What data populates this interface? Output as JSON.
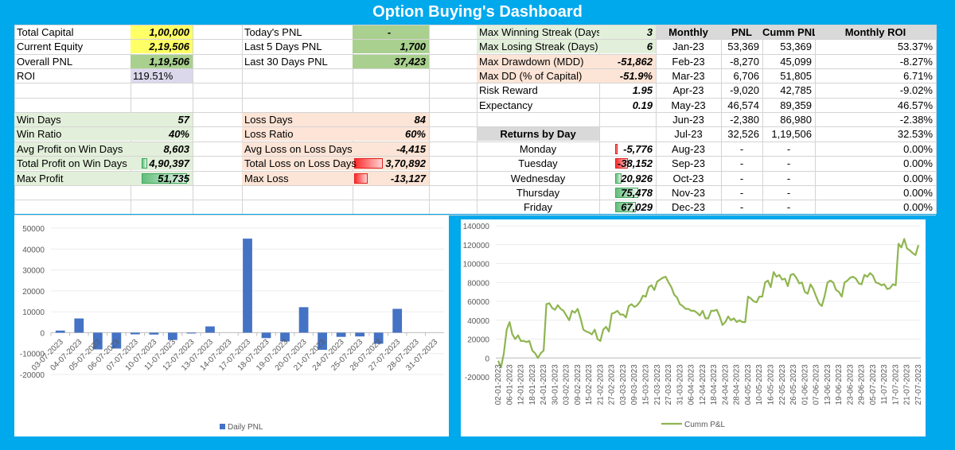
{
  "title": "Option Buying's Dashboard",
  "col1": [
    {
      "label": "Total Capital",
      "value": "1,00,000"
    },
    {
      "label": "Current Equity",
      "value": "2,19,506"
    },
    {
      "label": "Overall PNL",
      "value": "1,19,506"
    },
    {
      "label": "ROI",
      "value": "119.51%"
    }
  ],
  "col2": [
    {
      "label": "Today's PNL",
      "value": "-"
    },
    {
      "label": "Last 5 Days PNL",
      "value": "1,700"
    },
    {
      "label": "Last 30 Days PNL",
      "value": "37,423"
    }
  ],
  "win": [
    {
      "label": "Win Days",
      "value": "57"
    },
    {
      "label": "Win Ratio",
      "value": "40%"
    },
    {
      "label": "Avg Profit on Win Days",
      "value": "8,603"
    },
    {
      "label": "Total Profit on Win Days",
      "value": "4,90,397",
      "fill": 0.12
    },
    {
      "label": "Max Profit",
      "value": "51,735",
      "fill": 0.92
    }
  ],
  "loss": [
    {
      "label": "Loss Days",
      "value": "84"
    },
    {
      "label": "Loss Ratio",
      "value": "60%"
    },
    {
      "label": "Avg Loss on Loss Days",
      "value": "-4,415"
    },
    {
      "label": "Total Loss on Loss Days",
      "value": "3,70,892",
      "fill": 0.6
    },
    {
      "label": "Max Loss",
      "value": "-13,127",
      "fill": 0.28
    }
  ],
  "stats": [
    {
      "label": "Max Winning Streak (Days)",
      "value": "3"
    },
    {
      "label": "Max Losing Streak (Days)",
      "value": "6"
    },
    {
      "label": "Max Drawdown (MDD)",
      "value": "-51,862"
    },
    {
      "label": "Max DD (% of Capital)",
      "value": "-51.9%"
    },
    {
      "label": "Risk Reward",
      "value": "1.95"
    },
    {
      "label": "Expectancy",
      "value": "0.19"
    }
  ],
  "returns_by_day": {
    "header": "Returns by Day",
    "rows": [
      {
        "day": "Monday",
        "value": "-5,776",
        "kind": "neg",
        "fill": 0.05
      },
      {
        "day": "Tuesday",
        "value": "-38,152",
        "kind": "neg",
        "fill": 0.32
      },
      {
        "day": "Wednesday",
        "value": "20,926",
        "kind": "pos",
        "fill": 0.16
      },
      {
        "day": "Thursday",
        "value": "75,478",
        "kind": "pos",
        "fill": 0.58
      },
      {
        "day": "Friday",
        "value": "67,029",
        "kind": "pos",
        "fill": 0.52
      }
    ]
  },
  "monthly": {
    "headers": [
      "Monthly",
      "PNL",
      "Cumm PNL",
      "Monthly ROI"
    ],
    "rows": [
      [
        "Jan-23",
        "53,369",
        "53,369",
        "53.37%"
      ],
      [
        "Feb-23",
        "-8,270",
        "45,099",
        "-8.27%"
      ],
      [
        "Mar-23",
        "6,706",
        "51,805",
        "6.71%"
      ],
      [
        "Apr-23",
        "-9,020",
        "42,785",
        "-9.02%"
      ],
      [
        "May-23",
        "46,574",
        "89,359",
        "46.57%"
      ],
      [
        "Jun-23",
        "-2,380",
        "86,980",
        "-2.38%"
      ],
      [
        "Jul-23",
        "32,526",
        "1,19,506",
        "32.53%"
      ],
      [
        "Aug-23",
        "-",
        "-",
        "0.00%"
      ],
      [
        "Sep-23",
        "-",
        "-",
        "0.00%"
      ],
      [
        "Oct-23",
        "-",
        "-",
        "0.00%"
      ],
      [
        "Nov-23",
        "-",
        "-",
        "0.00%"
      ],
      [
        "Dec-23",
        "-",
        "-",
        "0.00%"
      ]
    ]
  },
  "colors": {
    "accent": "#00a8ec",
    "bar": "#4472c4",
    "line": "#8fb550"
  },
  "chart_data": [
    {
      "type": "bar",
      "title": "",
      "legend": "Daily PNL",
      "legend_position": "bottom",
      "categories": [
        "03-07-2023",
        "04-07-2023",
        "05-07-2023",
        "06-07-2023",
        "07-07-2023",
        "10-07-2023",
        "11-07-2023",
        "12-07-2023",
        "13-07-2023",
        "14-07-2023",
        "17-07-2023",
        "18-07-2023",
        "19-07-2023",
        "20-07-2023",
        "21-07-2023",
        "24-07-2023",
        "25-07-2023",
        "26-07-2023",
        "27-07-2023",
        "28-07-2023",
        "31-07-2023"
      ],
      "values": [
        1000,
        6800,
        -8000,
        -7600,
        -800,
        -900,
        -3500,
        -400,
        3000,
        0,
        45000,
        -2600,
        -4200,
        12200,
        -8200,
        -2000,
        -1800,
        -5300,
        11400,
        0,
        0
      ],
      "yticks": [
        "50000",
        "40000",
        "30000",
        "20000",
        "10000",
        "0",
        "-10000",
        "-20000"
      ],
      "ylim": [
        -20000,
        50000
      ]
    },
    {
      "type": "line",
      "title": "",
      "legend": "Cumm P&L",
      "legend_position": "bottom",
      "xticks": [
        "02-01-2023",
        "06-01-2023",
        "12-01-2023",
        "18-01-2023",
        "24-01-2023",
        "30-01-2023",
        "03-02-2023",
        "09-02-2023",
        "15-02-2023",
        "21-02-2023",
        "27-02-2023",
        "03-03-2023",
        "09-03-2023",
        "15-03-2023",
        "21-03-2023",
        "27-03-2023",
        "31-03-2023",
        "06-04-2023",
        "12-04-2023",
        "18-04-2023",
        "24-04-2023",
        "28-04-2023",
        "04-05-2023",
        "10-05-2023",
        "16-05-2023",
        "22-05-2023",
        "26-05-2023",
        "01-06-2023",
        "07-06-2023",
        "13-06-2023",
        "19-06-2023",
        "23-06-2023",
        "29-06-2023",
        "05-07-2023",
        "11-07-2023",
        "17-07-2023",
        "21-07-2023",
        "27-07-2023"
      ],
      "values": [
        -3000,
        -10000,
        5000,
        30000,
        38000,
        25000,
        20000,
        24000,
        18000,
        18000,
        17000,
        18000,
        8000,
        5000,
        0,
        5000,
        8000,
        57000,
        58000,
        53000,
        51000,
        56000,
        52000,
        50000,
        45000,
        40000,
        50000,
        48000,
        52000,
        42000,
        30000,
        28000,
        27000,
        25000,
        30000,
        20000,
        18000,
        30000,
        33000,
        28000,
        47000,
        48000,
        50000,
        46000,
        46000,
        43000,
        55000,
        57000,
        54000,
        56000,
        60000,
        66000,
        65000,
        75000,
        77000,
        72000,
        81000,
        83000,
        85000,
        86000,
        80000,
        75000,
        67000,
        64000,
        57000,
        55000,
        52000,
        52000,
        50000,
        50000,
        48000,
        45000,
        50000,
        42000,
        42000,
        50000,
        50000,
        51000,
        44000,
        35000,
        38000,
        44000,
        40000,
        42000,
        38000,
        40000,
        38000,
        38000,
        65000,
        63000,
        60000,
        59000,
        65000,
        65000,
        80000,
        82000,
        75000,
        91000,
        86000,
        88000,
        83000,
        84000,
        76000,
        88000,
        89000,
        85000,
        79000,
        80000,
        70000,
        68000,
        78000,
        73000,
        65000,
        58000,
        55000,
        66000,
        80000,
        82000,
        80000,
        72000,
        70000,
        65000,
        80000,
        82000,
        85000,
        86000,
        84000,
        79000,
        78000,
        88000,
        86000,
        90000,
        87000,
        80000,
        79000,
        77000,
        78000,
        73000,
        74000,
        78000,
        77000,
        121000,
        117000,
        126000,
        116000,
        114000,
        111000,
        109000,
        119506
      ],
      "yticks": [
        "140000",
        "120000",
        "100000",
        "80000",
        "60000",
        "40000",
        "20000",
        "0",
        "-20000"
      ],
      "ylim": [
        -20000,
        140000
      ]
    }
  ]
}
